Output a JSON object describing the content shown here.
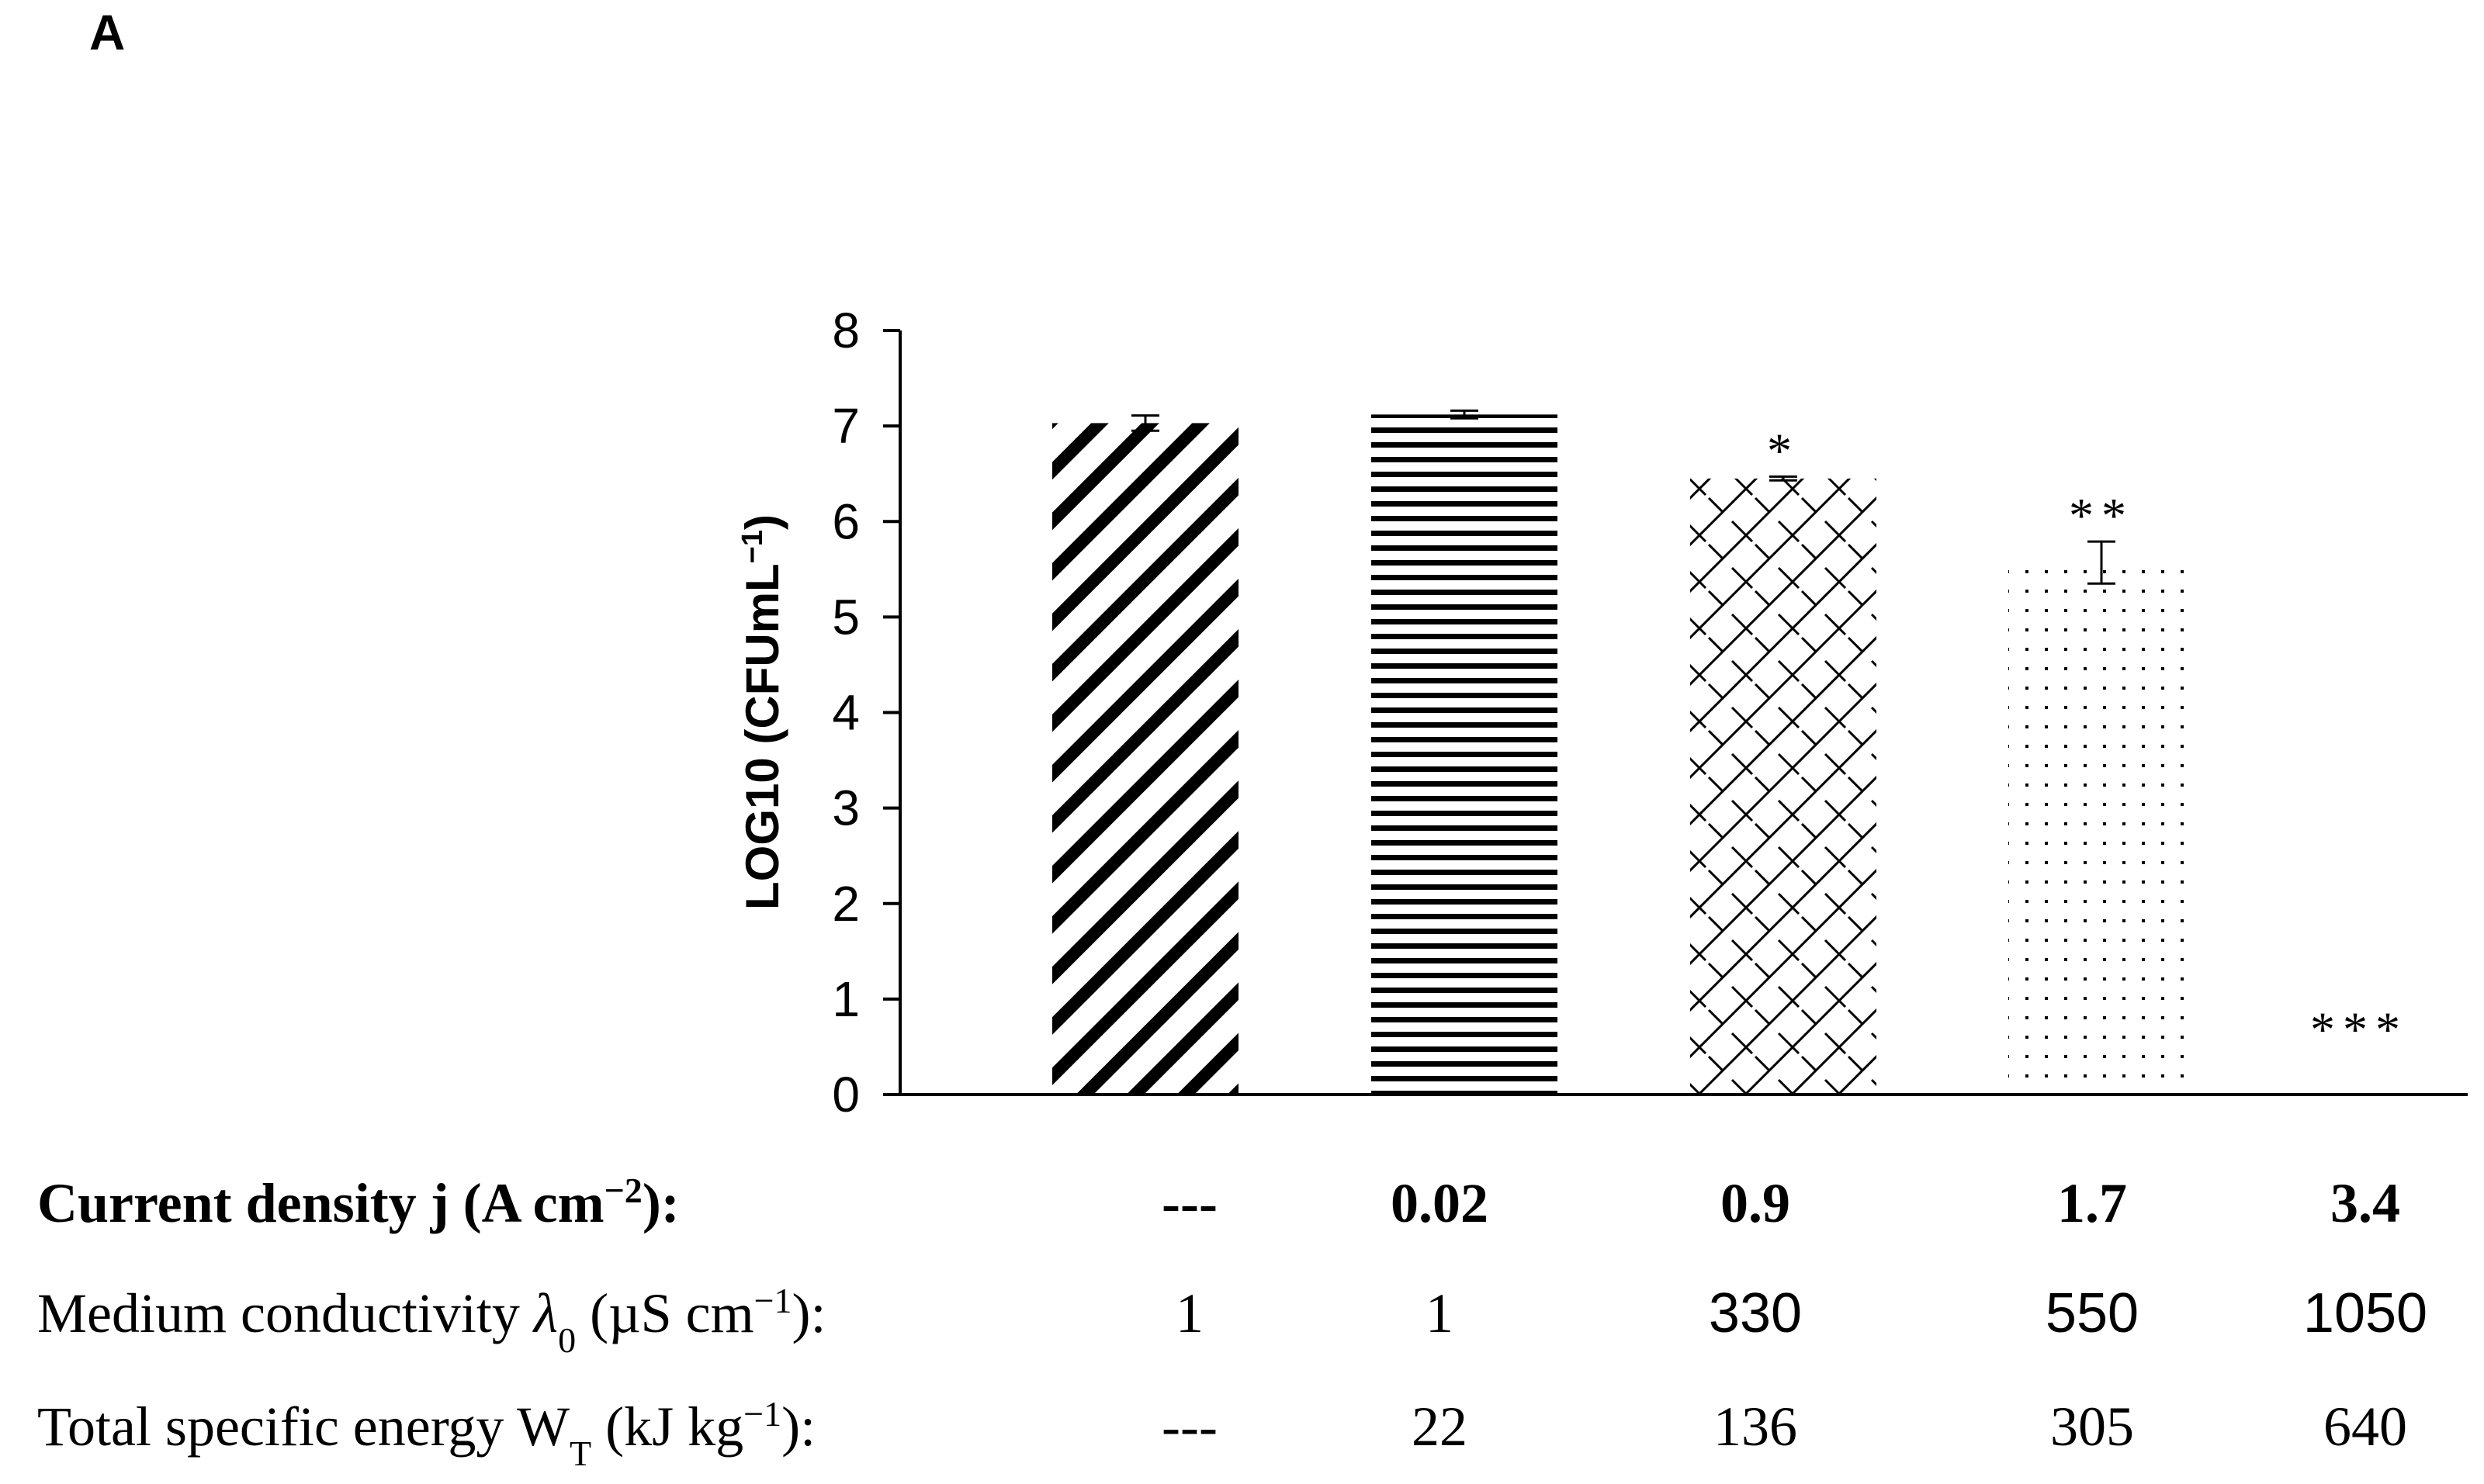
{
  "panel_label": "A",
  "chart_data": {
    "type": "bar",
    "categories": [
      "---",
      "0.02",
      "0.9",
      "1.7",
      "3.4"
    ],
    "values": [
      7.03,
      7.12,
      6.45,
      5.57,
      0
    ],
    "errors": [
      0.08,
      0.04,
      0.02,
      0.22,
      0
    ],
    "significance": [
      "",
      "",
      "*",
      "**",
      "***"
    ],
    "ylabel": "LOG10 (CFUmL",
    "ylabel_sup": "−1",
    "ylabel_close": ")",
    "ylim": [
      0,
      8
    ],
    "yticks": [
      0,
      1,
      2,
      3,
      4,
      5,
      6,
      7,
      8
    ],
    "patterns": [
      "diagonal-stripes",
      "horizontal-stripes",
      "crosshatch",
      "dots",
      "none"
    ],
    "grid": false
  },
  "table": {
    "rows": [
      {
        "label": "Current density j (A cm",
        "label_sup": "−2",
        "label_tail": "):",
        "values": [
          "---",
          "0.02",
          "0.9",
          "1.7",
          "3.4"
        ]
      },
      {
        "label": "Medium conductivity ",
        "label_symbol": "λ",
        "label_sub": "0",
        "label_tail": " (µS cm",
        "label_sup": "−1",
        "label_end": "):",
        "values": [
          "1",
          "1",
          "330",
          "550",
          "1050"
        ]
      },
      {
        "label": "Total specific energy W",
        "label_sub": "T",
        "label_tail": " (kJ kg",
        "label_sup": "−1",
        "label_end": "):",
        "values": [
          "---",
          "22",
          "136",
          "305",
          "640"
        ]
      }
    ]
  }
}
